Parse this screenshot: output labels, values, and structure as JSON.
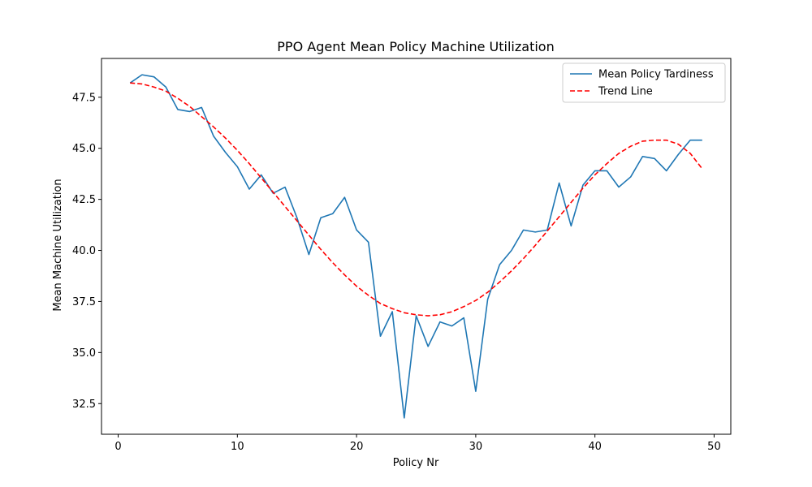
{
  "chart_data": {
    "type": "line",
    "title": "PPO Agent Mean Policy Machine Utilization",
    "xlabel": "Policy Nr",
    "ylabel": "Mean Machine Utilization",
    "xlim": [
      -1.4,
      51.4
    ],
    "ylim": [
      31.0,
      49.4
    ],
    "xticks": [
      0,
      10,
      20,
      30,
      40,
      50
    ],
    "xtick_labels": [
      "0",
      "10",
      "20",
      "30",
      "40",
      "50"
    ],
    "yticks": [
      32.5,
      35.0,
      37.5,
      40.0,
      42.5,
      45.0,
      47.5
    ],
    "ytick_labels": [
      "32.5",
      "35.0",
      "37.5",
      "40.0",
      "42.5",
      "45.0",
      "47.5"
    ],
    "grid": false,
    "legend_position": "top-right",
    "series": [
      {
        "name": "Mean Policy Tardiness",
        "color": "#1f77b4",
        "style": "solid",
        "x": [
          1,
          2,
          3,
          4,
          5,
          6,
          7,
          8,
          9,
          10,
          11,
          12,
          13,
          14,
          15,
          16,
          17,
          18,
          19,
          20,
          21,
          22,
          23,
          24,
          25,
          26,
          27,
          28,
          29,
          30,
          31,
          32,
          33,
          34,
          35,
          36,
          37,
          38,
          39,
          40,
          41,
          42,
          43,
          44,
          45,
          46,
          47,
          48,
          49
        ],
        "values": [
          48.2,
          48.6,
          48.5,
          48.0,
          46.9,
          46.8,
          47.0,
          45.6,
          44.8,
          44.1,
          43.0,
          43.7,
          42.8,
          43.1,
          41.6,
          39.8,
          41.6,
          41.8,
          42.6,
          41.0,
          40.4,
          35.8,
          37.0,
          31.8,
          36.8,
          35.3,
          36.5,
          36.3,
          36.7,
          33.1,
          37.6,
          39.3,
          40.0,
          41.0,
          40.9,
          41.0,
          43.3,
          41.2,
          43.2,
          43.9,
          43.9,
          43.1,
          43.6,
          44.6,
          44.5,
          43.9,
          44.7,
          45.4,
          45.4
        ]
      },
      {
        "name": "Trend Line",
        "color": "#ff0000",
        "style": "dashed",
        "x": [
          1,
          2,
          3,
          4,
          5,
          6,
          7,
          8,
          9,
          10,
          11,
          12,
          13,
          14,
          15,
          16,
          17,
          18,
          19,
          20,
          21,
          22,
          23,
          24,
          25,
          26,
          27,
          28,
          29,
          30,
          31,
          32,
          33,
          34,
          35,
          36,
          37,
          38,
          39,
          40,
          41,
          42,
          43,
          44,
          45,
          46,
          47,
          48,
          49
        ],
        "values": [
          48.2,
          48.15,
          48.0,
          47.8,
          47.45,
          47.05,
          46.55,
          46.05,
          45.5,
          44.9,
          44.25,
          43.55,
          42.85,
          42.15,
          41.45,
          40.75,
          40.05,
          39.4,
          38.8,
          38.25,
          37.8,
          37.4,
          37.15,
          36.95,
          36.85,
          36.8,
          36.85,
          37.0,
          37.25,
          37.55,
          37.95,
          38.45,
          39.0,
          39.6,
          40.25,
          40.95,
          41.65,
          42.35,
          43.05,
          43.7,
          44.25,
          44.75,
          45.1,
          45.35,
          45.4,
          45.4,
          45.2,
          44.75,
          44.0
        ]
      }
    ]
  }
}
